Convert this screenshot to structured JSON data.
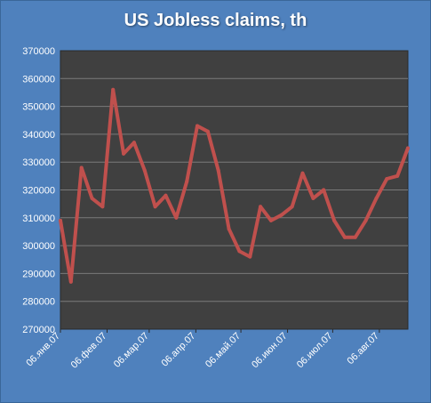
{
  "chart_data": {
    "type": "line",
    "title": "US Jobless claims, th",
    "xlabel": "",
    "ylabel": "",
    "ylim": [
      270000,
      370000
    ],
    "y_ticks": [
      270000,
      280000,
      290000,
      300000,
      310000,
      320000,
      330000,
      340000,
      350000,
      360000,
      370000
    ],
    "x_tick_labels": [
      "06.янв.07",
      "06.фев.07",
      "06.мар.07",
      "06.апр.07",
      "06.май.07",
      "06.июн.07",
      "06.июл.07",
      "06.авг.07"
    ],
    "x_tick_weeks": [
      0,
      4.43,
      8.43,
      12.86,
      17.14,
      21.57,
      25.86,
      30.29
    ],
    "grid": true,
    "colors": {
      "background": "#4f81bd",
      "plot_area": "#404040",
      "line": "#c0504d",
      "grid": "#7a7a7a"
    },
    "series": [
      {
        "values": [
          309000,
          287000,
          328000,
          317000,
          314000,
          356000,
          333000,
          337000,
          327000,
          314000,
          318000,
          310000,
          323000,
          343000,
          341000,
          327000,
          306000,
          298000,
          296000,
          314000,
          309000,
          311000,
          314000,
          326000,
          317000,
          320000,
          309000,
          303000,
          303000,
          309000,
          317000,
          324000,
          325000,
          335000
        ]
      }
    ]
  }
}
